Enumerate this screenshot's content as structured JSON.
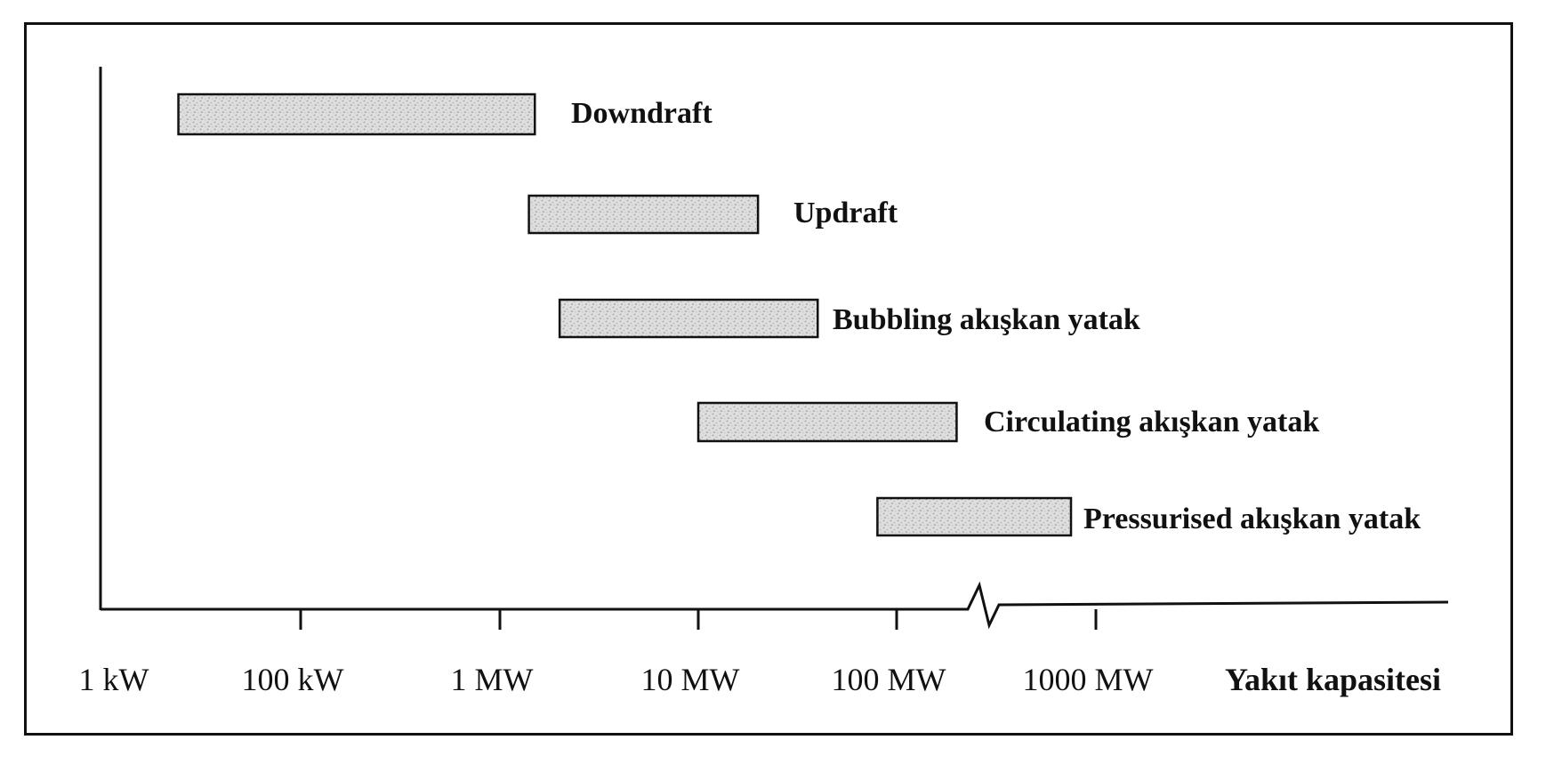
{
  "chart_data": {
    "type": "bar",
    "orientation": "horizontal-range",
    "title": "",
    "xlabel": "Yakıt kapasitesi",
    "ylabel": "",
    "x_scale": "log",
    "x_ticks": [
      "1 kW",
      "100 kW",
      "1 MW",
      "10 MW",
      "100 MW",
      "1000 MW"
    ],
    "axis_break": "between 100 MW and 1000 MW",
    "series": [
      {
        "label": "Downdraft",
        "start_kW": 6,
        "end_kW": 1500
      },
      {
        "label": "Updraft",
        "start_kW": 1400,
        "end_kW": 20000
      },
      {
        "label": "Bubbling akışkan yatak",
        "start_kW": 2000,
        "end_kW": 40000
      },
      {
        "label": "Circulating akışkan yatak",
        "start_kW": 10000,
        "end_kW": 200000
      },
      {
        "label": "Pressurised akışkan yatak",
        "start_kW": 80000,
        "end_kW": 750000
      }
    ],
    "colors": {
      "bar_fill": "#d9d9d9",
      "bar_texture": "#a8a8a8",
      "bar_stroke": "#111111",
      "axis": "#111111"
    }
  }
}
